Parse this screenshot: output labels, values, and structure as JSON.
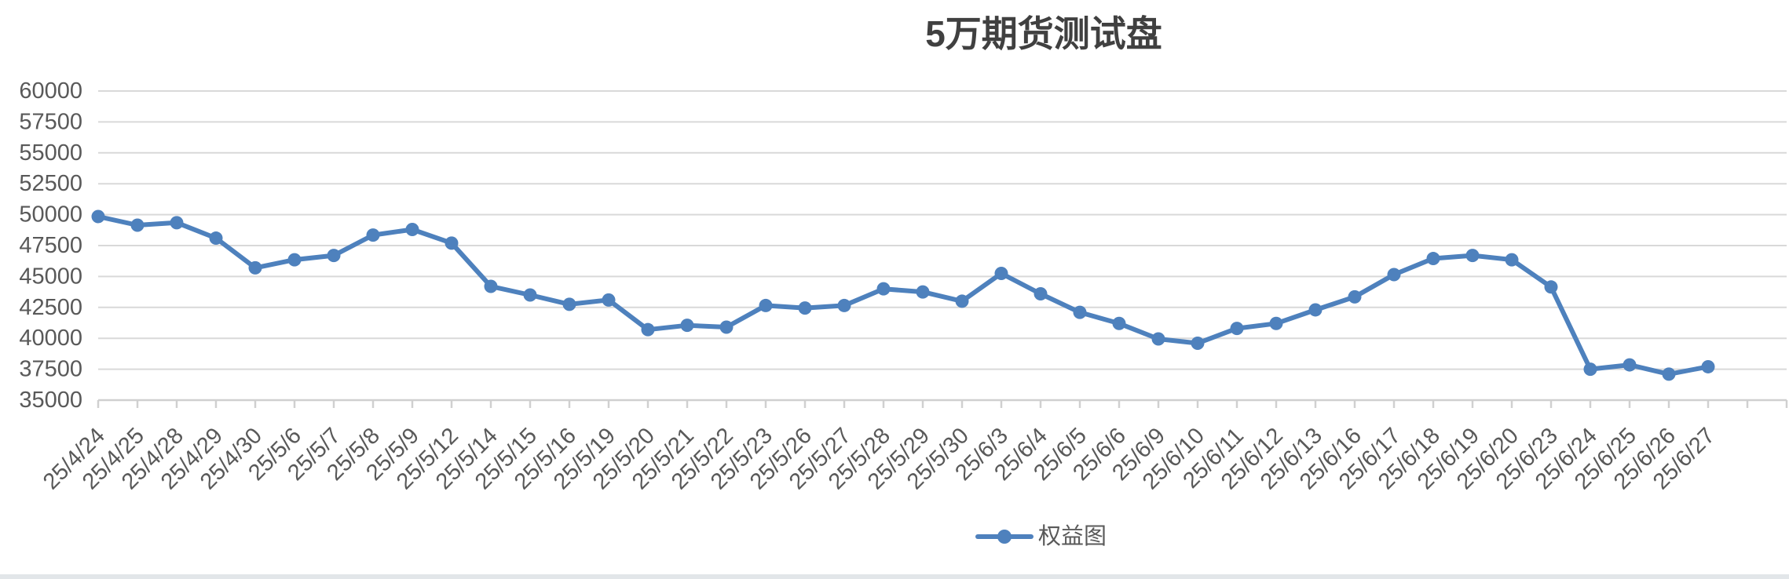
{
  "chart_data": {
    "type": "line",
    "title": "5万期货测试盘",
    "xlabel": "",
    "ylabel": "",
    "categories": [
      "25/4/24",
      "25/4/25",
      "25/4/28",
      "25/4/29",
      "25/4/30",
      "25/5/6",
      "25/5/7",
      "25/5/8",
      "25/5/9",
      "25/5/12",
      "25/5/14",
      "25/5/15",
      "25/5/16",
      "25/5/19",
      "25/5/20",
      "25/5/21",
      "25/5/22",
      "25/5/23",
      "25/5/26",
      "25/5/27",
      "25/5/28",
      "25/5/29",
      "25/5/30",
      "25/6/3",
      "25/6/4",
      "25/6/5",
      "25/6/6",
      "25/6/9",
      "25/6/10",
      "25/6/11",
      "25/6/12",
      "25/6/13",
      "25/6/16",
      "25/6/17",
      "25/6/18",
      "25/6/19",
      "25/6/20",
      "25/6/23",
      "25/6/24",
      "25/6/25",
      "25/6/26",
      "25/6/27"
    ],
    "series": [
      {
        "name": "权益图",
        "values": [
          49850,
          49150,
          49350,
          48100,
          45700,
          46350,
          46700,
          48350,
          48800,
          47700,
          44200,
          43500,
          42750,
          43100,
          40700,
          41050,
          40900,
          42650,
          42450,
          42650,
          44000,
          43750,
          43000,
          45250,
          43600,
          42100,
          41200,
          39950,
          39600,
          40800,
          41200,
          42300,
          43350,
          45150,
          46450,
          46700,
          46350,
          44150,
          37500,
          37850,
          37100,
          37700
        ]
      }
    ],
    "ylim": [
      35000,
      60000
    ],
    "yticks": [
      60000,
      57500,
      55000,
      52500,
      50000,
      47500,
      45000,
      42500,
      40000,
      37500,
      35000
    ],
    "grid": true,
    "legend": "bottom-center",
    "markers": "circle"
  },
  "colors": {
    "series": "#4e81bd",
    "grid": "#d9d9d9",
    "axis_text": "#595959",
    "title": "#404040",
    "background": "#ffffff"
  }
}
